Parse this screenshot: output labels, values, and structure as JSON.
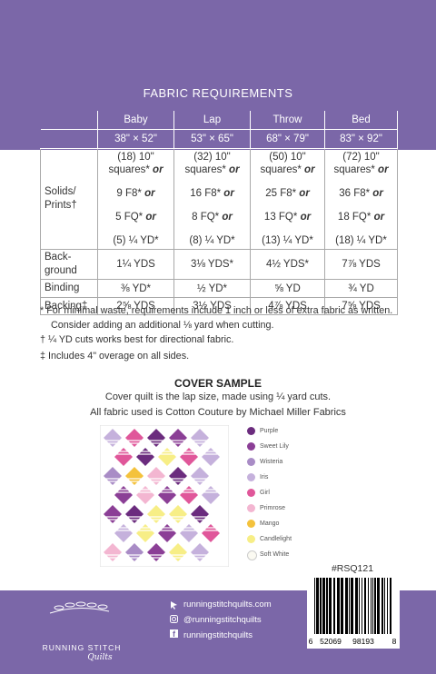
{
  "header": {
    "title": "FABRIC REQUIREMENTS"
  },
  "table": {
    "columns": [
      {
        "name": "Baby",
        "size": "38\" × 52\""
      },
      {
        "name": "Lap",
        "size": "53\" × 65\""
      },
      {
        "name": "Throw",
        "size": "68\" × 79\""
      },
      {
        "name": "Bed",
        "size": "83\" × 92\""
      }
    ],
    "rows": [
      {
        "label": "Solids/ Prints†",
        "cells": [
          [
            {
              "text": "(18) 10\" squares*",
              "em": "or"
            },
            {
              "text": "9 F8*",
              "em": "or"
            },
            {
              "text": "5 FQ*",
              "em": "or"
            },
            {
              "text": "(5) ¼ YD*"
            }
          ],
          [
            {
              "text": "(32) 10\" squares*",
              "em": "or"
            },
            {
              "text": "16 F8*",
              "em": "or"
            },
            {
              "text": "8 FQ*",
              "em": "or"
            },
            {
              "text": "(8) ¼ YD*"
            }
          ],
          [
            {
              "text": "(50) 10\" squares*",
              "em": "or"
            },
            {
              "text": "25 F8*",
              "em": "or"
            },
            {
              "text": "13 FQ*",
              "em": "or"
            },
            {
              "text": "(13) ¼ YD*"
            }
          ],
          [
            {
              "text": "(72) 10\" squares*",
              "em": "or"
            },
            {
              "text": "36 F8*",
              "em": "or"
            },
            {
              "text": "18 FQ*",
              "em": "or"
            },
            {
              "text": "(18) ¼ YD*"
            }
          ]
        ]
      },
      {
        "label": "Back-ground",
        "cells": [
          "1¼ YDS",
          "3⅛ YDS*",
          "4½ YDS*",
          "7⅞ YDS"
        ]
      },
      {
        "label": "Binding",
        "cells": [
          "⅜ YD*",
          "½ YD*",
          "⅝ YD",
          "¾ YD"
        ]
      },
      {
        "label": "Backing‡",
        "cells": [
          "2⅝ YDS",
          "3½ YDS",
          "4⅞ YDS",
          "7⅝ YDS"
        ]
      }
    ]
  },
  "notes": [
    "* For minimal waste, requirements include 1 inch or less of extra fabric as written. Consider adding an additional ⅛ yard when cutting.",
    "† ¼ YD cuts works best for directional fabric.",
    "‡ Includes 4\" overage on all sides."
  ],
  "cover_sample": {
    "title": "COVER SAMPLE",
    "lines": [
      "Cover quilt is the lap size, made using ¼ yard cuts.",
      "All fabric used is Cotton Couture by Michael Miller Fabrics"
    ],
    "legend": [
      "Purple",
      "Sweet Lily",
      "Wisteria",
      "Iris",
      "Girl",
      "Primrose",
      "Mango",
      "Candlelight",
      "Soft White"
    ]
  },
  "sku": "#RSQ121",
  "barcode": [
    "6",
    "52069",
    "98193",
    "8"
  ],
  "footer": {
    "brand": "RUNNING STITCH",
    "brand_script": "Quilts",
    "links": [
      "runningstitchquilts.com",
      "@runningstitchquilts",
      "runningstitchquilts"
    ]
  }
}
